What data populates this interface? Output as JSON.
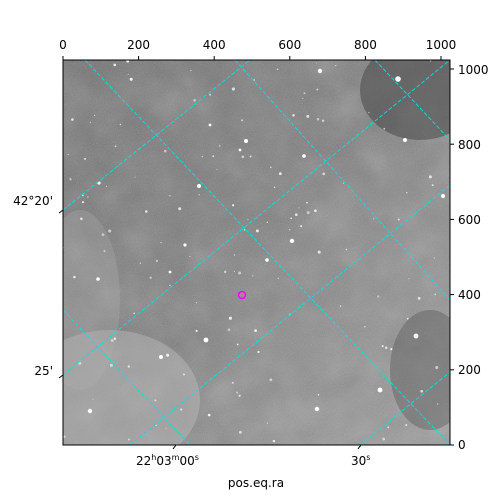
{
  "figure": {
    "target_marker_color": "#ff00ff",
    "grid_color": "#00e5e5",
    "colormap": "grayscale"
  },
  "axes": {
    "top": {
      "ticks": [
        "0",
        "200",
        "400",
        "600",
        "800",
        "1000"
      ],
      "range": [
        0,
        1024
      ]
    },
    "right": {
      "ticks": [
        "0",
        "200",
        "400",
        "600",
        "800",
        "1000"
      ],
      "range": [
        0,
        1024
      ]
    },
    "left_dec_ticks": [
      "42°20'",
      "25'"
    ],
    "bottom_ra_ticks": [
      "22h03m00s",
      "30s"
    ],
    "bottom_ra_parts": {
      "h": "22",
      "h_unit": "h",
      "m": "03",
      "m_unit": "m",
      "s": "00",
      "s_unit": "s"
    },
    "bottom_ra_30": {
      "value": "30",
      "unit": "s"
    },
    "xlabel": "pos.eq.ra"
  }
}
